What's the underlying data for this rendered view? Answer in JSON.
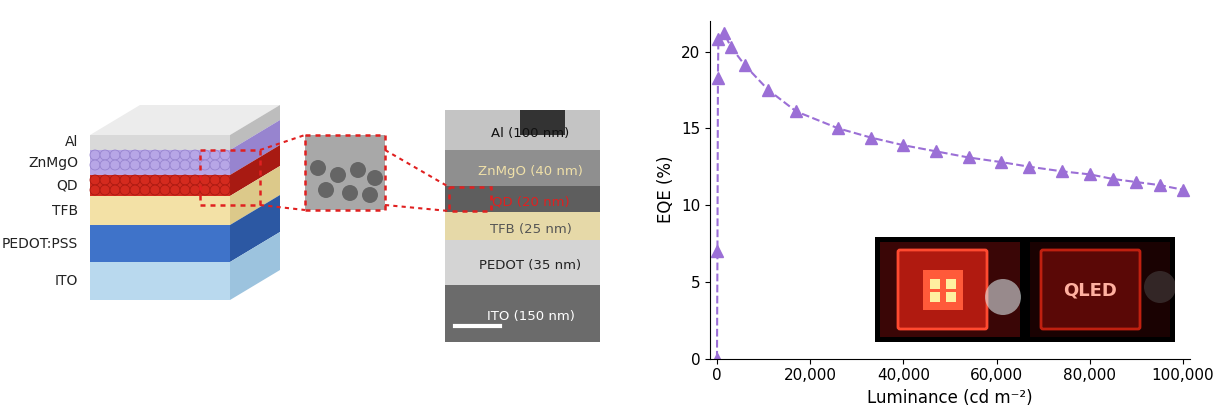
{
  "diagram": {
    "stack_layers": [
      "Al",
      "ZnMgO",
      "QD",
      "TFB",
      "PEDOT:PSS",
      "ITO"
    ],
    "tem_labels": [
      "Al (100 nm)",
      "ZnMgO (40 nm)",
      "QD (20 nm)",
      "TFB (25 nm)",
      "PEDOT (35 nm)",
      "ITO (150 nm)"
    ]
  },
  "chart_data": {
    "type": "line",
    "x_label": "Luminance (cd m⁻²)",
    "y_label": "EQE (%)",
    "x": [
      0,
      100,
      200,
      300,
      1500,
      3000,
      6000,
      11000,
      17000,
      26000,
      33000,
      40000,
      47000,
      54000,
      61000,
      67000,
      74000,
      80000,
      85000,
      90000,
      95000,
      100000
    ],
    "values": [
      0,
      7.0,
      18.3,
      20.8,
      21.2,
      20.3,
      19.1,
      17.5,
      16.1,
      15.0,
      14.4,
      13.9,
      13.5,
      13.1,
      12.8,
      12.5,
      12.2,
      12.0,
      11.7,
      11.5,
      11.3,
      11.0
    ],
    "color": "#9b6fd6",
    "marker": "^",
    "line_style": "dashed",
    "xlim": [
      -1500,
      101500
    ],
    "ylim": [
      0,
      22
    ],
    "xticks": [
      0,
      {
        "value": 20000,
        "label": "20,000"
      },
      {
        "value": 40000,
        "label": "40,000"
      },
      {
        "value": 60000,
        "label": "60,000"
      },
      {
        "value": 80000,
        "label": "80,000"
      },
      {
        "value": 100000,
        "label": "100,000"
      }
    ],
    "yticks": [
      0,
      5,
      10,
      15,
      20
    ],
    "grid": false,
    "annotations": [
      "QLED"
    ]
  }
}
